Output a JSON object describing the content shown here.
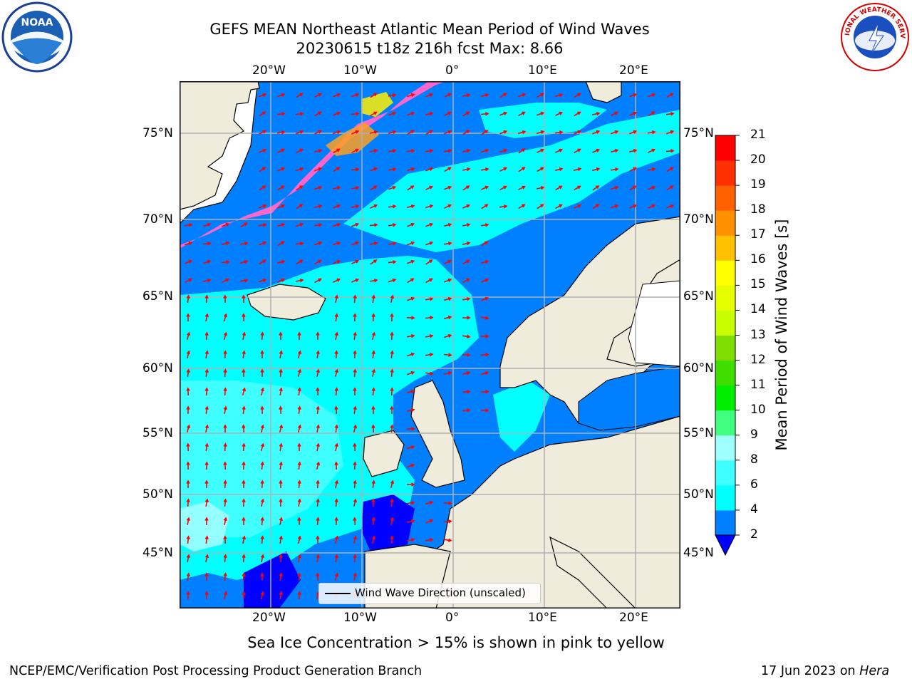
{
  "title": {
    "line1": "GEFS MEAN Northeast Atlantic Mean Period of Wind Waves",
    "line2": "20230615 t18z 216h fcst   Max: 8.66"
  },
  "map": {
    "lon_ticks": [
      "20°W",
      "10°W",
      "0°",
      "10°E",
      "20°E"
    ],
    "lat_ticks": [
      "75°N",
      "70°N",
      "65°N",
      "60°N",
      "55°N",
      "50°N",
      "45°N"
    ],
    "legend_label": "Wind Wave Direction (unscaled)",
    "colors": {
      "land": "#efecdc",
      "ice_white": "#ffffff",
      "arrow": "#ff0000",
      "grid": "#b0b0b0"
    }
  },
  "colorbar": {
    "label": "Mean Period of Wind Waves [s]",
    "ticks": [
      "2",
      "4",
      "6",
      "8",
      "9",
      "10",
      "11",
      "12",
      "13",
      "14",
      "15",
      "16",
      "17",
      "18",
      "19",
      "20",
      "21"
    ],
    "colors": [
      "#0000ff",
      "#0080ff",
      "#00ffff",
      "#40ffff",
      "#a0ffff",
      "#40ff80",
      "#00ee00",
      "#40dd00",
      "#80dd00",
      "#c8ff00",
      "#e6ff00",
      "#ffff00",
      "#ffc000",
      "#ff9000",
      "#ff6000",
      "#ff3000",
      "#ff0000"
    ]
  },
  "note": "Sea Ice Concentration > 15% is shown in pink to yellow",
  "footer": {
    "left": "NCEP/EMC/Verification Post Processing Product Generation Branch",
    "date": "17 Jun 2023 on ",
    "host": "Hera"
  },
  "logos": {
    "noaa": "NOAA",
    "nws": "NATIONAL WEATHER SERVICE"
  }
}
